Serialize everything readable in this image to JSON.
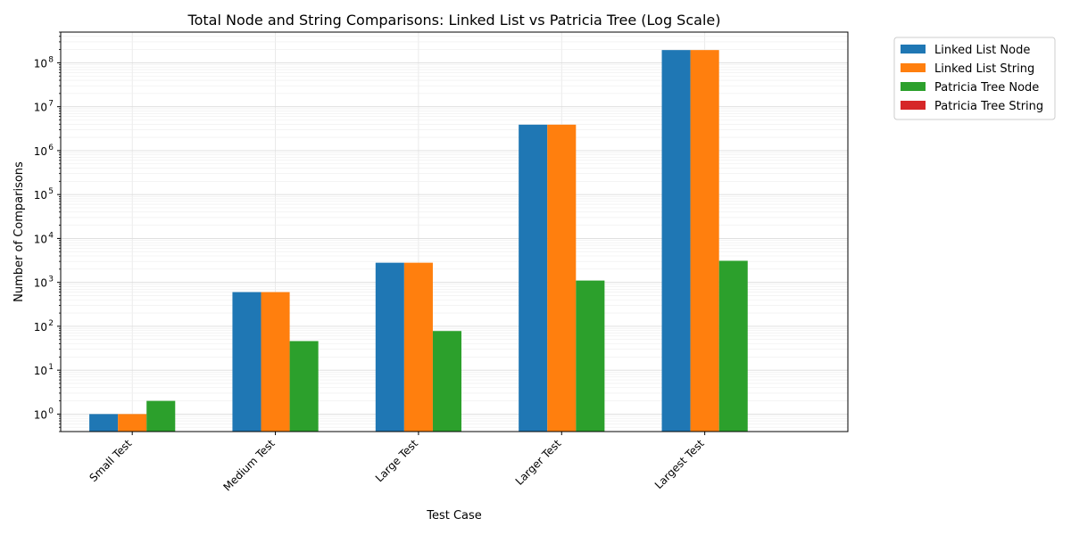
{
  "chart_data": {
    "type": "bar",
    "title": "Total Node and String Comparisons: Linked List vs Patricia Tree (Log Scale)",
    "xlabel": "Test Case",
    "ylabel": "Number of Comparisons",
    "yscale": "log",
    "ylim": [
      0.4,
      500000000
    ],
    "grid": true,
    "legend_position": "outside-top-right",
    "categories": [
      "Small Test",
      "Medium Test",
      "Large Test",
      "Larger Test",
      "Largest Test"
    ],
    "series": [
      {
        "name": "Linked List Node",
        "color": "#1f77b4",
        "values": [
          1,
          600,
          2800,
          3900000,
          195000000
        ]
      },
      {
        "name": "Linked List String",
        "color": "#ff7f0e",
        "values": [
          1,
          600,
          2800,
          3900000,
          195000000
        ]
      },
      {
        "name": "Patricia Tree Node",
        "color": "#2ca02c",
        "values": [
          2,
          46,
          78,
          1100,
          3100
        ]
      },
      {
        "name": "Patricia Tree String",
        "color": "#d62728",
        "values": [
          0,
          0,
          0,
          0,
          0
        ]
      }
    ],
    "y_ticks": [
      {
        "exp": 0,
        "label": "10",
        "sup": "0"
      },
      {
        "exp": 1,
        "label": "10",
        "sup": "1"
      },
      {
        "exp": 2,
        "label": "10",
        "sup": "2"
      },
      {
        "exp": 3,
        "label": "10",
        "sup": "3"
      },
      {
        "exp": 4,
        "label": "10",
        "sup": "4"
      },
      {
        "exp": 5,
        "label": "10",
        "sup": "5"
      },
      {
        "exp": 6,
        "label": "10",
        "sup": "6"
      },
      {
        "exp": 7,
        "label": "10",
        "sup": "7"
      },
      {
        "exp": 8,
        "label": "10",
        "sup": "8"
      }
    ]
  }
}
